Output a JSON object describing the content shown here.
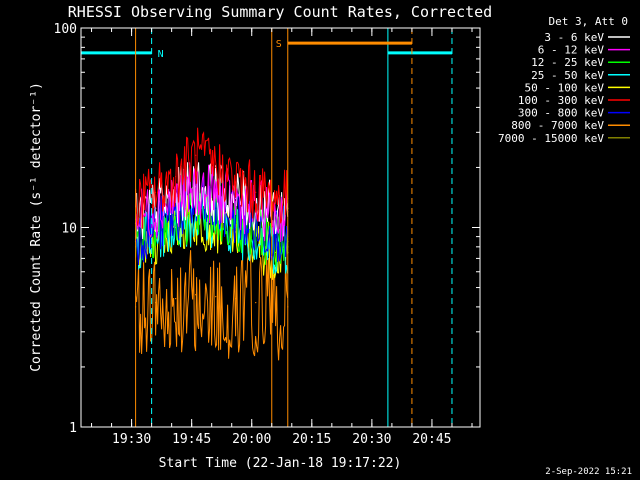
{
  "chart_data": {
    "type": "line",
    "title": "RHESSI Observing Summary Count Rates, Corrected",
    "xlabel": "Start Time (22-Jan-18 19:17:22)",
    "ylabel": "Corrected Count Rate (s⁻¹ detector⁻¹)",
    "y_scale": "log",
    "ylim": [
      1,
      100
    ],
    "xlim": [
      "19:17:22",
      "20:57:00"
    ],
    "x_ticks": [
      "19:30",
      "19:45",
      "20:00",
      "20:15",
      "20:30",
      "20:45"
    ],
    "y_ticks": [
      "1",
      "10",
      "100"
    ],
    "legend_title": "Det 3, Att 0",
    "legend_position": "top-right",
    "grid": false,
    "series": [
      {
        "name": "3 - 6 keV",
        "color": "#ffffff",
        "x": [
          "19:31",
          "19:36",
          "19:41",
          "19:46",
          "19:51",
          "19:56",
          "20:01",
          "20:06",
          "20:09"
        ],
        "y": [
          10.5,
          12.5,
          14,
          16,
          15,
          14,
          13,
          12,
          12.5
        ]
      },
      {
        "name": "6 - 12 keV",
        "color": "#ff00ff",
        "x": [
          "19:31",
          "19:36",
          "19:41",
          "19:46",
          "19:51",
          "19:56",
          "20:01",
          "20:06",
          "20:09"
        ],
        "y": [
          11,
          12.5,
          14,
          15.5,
          14.5,
          13.5,
          12.5,
          11.5,
          12
        ]
      },
      {
        "name": "12 - 25 keV",
        "color": "#00ff00",
        "x": [
          "19:31",
          "19:36",
          "19:41",
          "19:46",
          "19:51",
          "19:56",
          "20:01",
          "20:06",
          "20:09"
        ],
        "y": [
          9,
          10,
          11,
          12,
          11.5,
          10.5,
          9.5,
          8.5,
          8.5
        ]
      },
      {
        "name": "25 - 50 keV",
        "color": "#00ffff",
        "x": [
          "19:31",
          "19:36",
          "19:41",
          "19:46",
          "19:51",
          "19:56",
          "20:01",
          "20:06",
          "20:09"
        ],
        "y": [
          8.5,
          9.5,
          10.5,
          11.5,
          11,
          10,
          9,
          8,
          8
        ]
      },
      {
        "name": "50 - 100 keV",
        "color": "#ffff00",
        "x": [
          "19:31",
          "19:36",
          "19:41",
          "19:46",
          "19:51",
          "19:56",
          "20:01",
          "20:06",
          "20:09"
        ],
        "y": [
          8,
          9,
          10,
          11,
          10.5,
          9.5,
          8.5,
          7.5,
          7.5
        ]
      },
      {
        "name": "100 - 300 keV",
        "color": "#ff0000",
        "x": [
          "19:31",
          "19:36",
          "19:41",
          "19:46",
          "19:51",
          "19:56",
          "20:01",
          "20:06",
          "20:09"
        ],
        "y": [
          13,
          15,
          18,
          23,
          20,
          17,
          15,
          14,
          14
        ]
      },
      {
        "name": "300 - 800 keV",
        "color": "#0000ff",
        "x": [
          "19:31",
          "19:36",
          "19:41",
          "19:46",
          "19:51",
          "19:56",
          "20:01",
          "20:06",
          "20:09"
        ],
        "y": [
          9,
          10,
          11.5,
          13,
          12.5,
          11.5,
          10,
          9.5,
          9
        ]
      },
      {
        "name": "800 - 7000 keV",
        "color": "#ff8c00",
        "x": [
          "19:31",
          "19:36",
          "19:41",
          "19:46",
          "19:51",
          "19:56",
          "20:01",
          "20:06",
          "20:09"
        ],
        "y": [
          4,
          4.2,
          4.4,
          4.6,
          4.5,
          4.4,
          4.2,
          4,
          4
        ]
      },
      {
        "name": "7000 - 15000 keV",
        "color": "#808000",
        "x": [],
        "y": []
      }
    ],
    "annotations": [
      {
        "flag": "N",
        "color": "#00ffff",
        "level": 75,
        "bars": [
          [
            "19:17:22",
            "19:35"
          ],
          [
            "20:34",
            "20:50"
          ]
        ],
        "edges_solid": [
          "19:17:22",
          "20:34"
        ],
        "edges_dashed": [
          "19:35",
          "20:50"
        ]
      },
      {
        "flag": "S",
        "color": "#ff8c00",
        "level": 84,
        "bars": [
          [
            "20:09",
            "20:40"
          ]
        ],
        "edges_solid": [
          "19:31",
          "20:05",
          "20:09"
        ],
        "edges_dashed": [
          "20:40"
        ]
      }
    ]
  },
  "timestamp": "2-Sep-2022 15:21"
}
